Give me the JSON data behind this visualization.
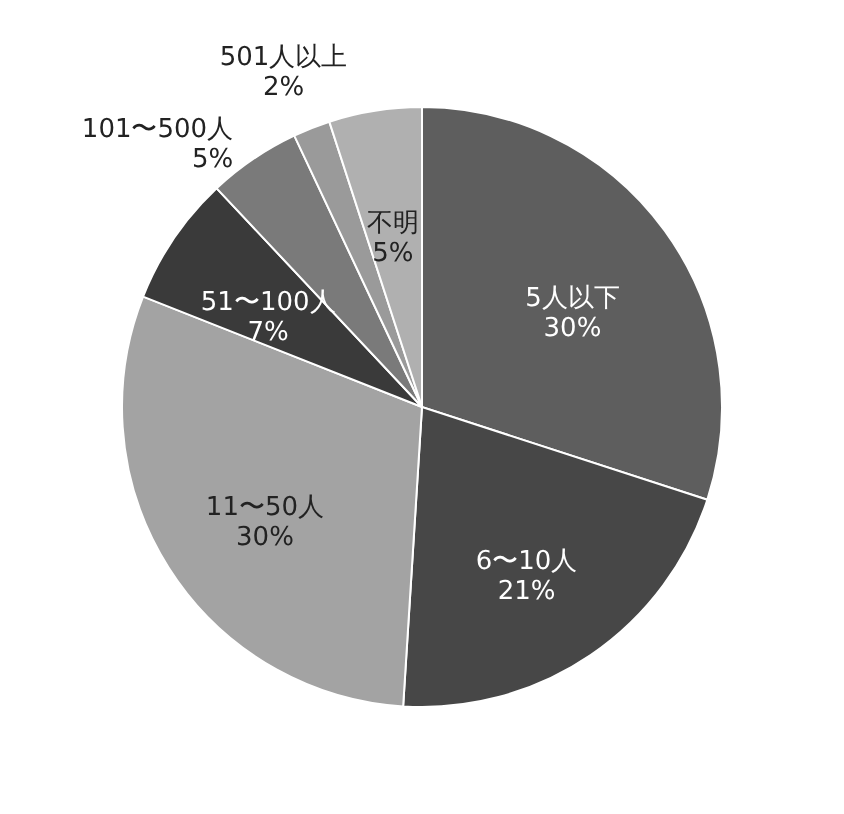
{
  "chart_data": {
    "type": "pie",
    "categories": [
      "5人以下",
      "6〜10人",
      "11〜50人",
      "51〜100人",
      "101〜500人",
      "501人以上",
      "不明"
    ],
    "values": [
      30,
      21,
      30,
      7,
      5,
      2,
      5
    ],
    "value_labels": [
      "30%",
      "21%",
      "30%",
      "7%",
      "5%",
      "2%",
      "5%"
    ],
    "colors": [
      "#5e5e5e",
      "#474747",
      "#a3a3a3",
      "#3a3a3a",
      "#7a7a7a",
      "#9a9a9a",
      "#b0b0b0"
    ],
    "legend": false
  }
}
